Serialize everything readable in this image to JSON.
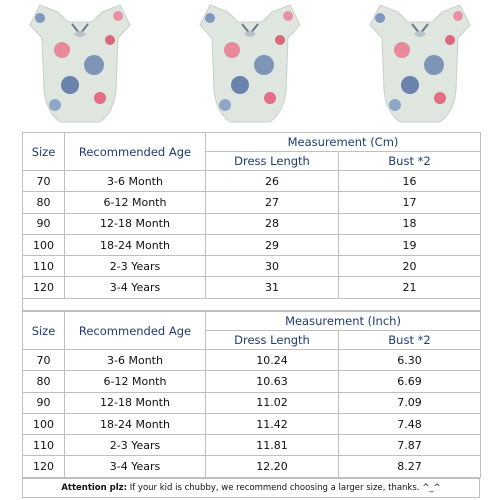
{
  "tables": [
    {
      "headers": {
        "size": "Size",
        "age": "Recommended Age",
        "measurement": "Measurement (Cm)",
        "dress": "Dress Length",
        "bust": "Bust *2"
      },
      "rows": [
        [
          "70",
          "3-6 Month",
          "26",
          "16"
        ],
        [
          "80",
          "6-12 Month",
          "27",
          "17"
        ],
        [
          "90",
          "12-18 Month",
          "28",
          "18"
        ],
        [
          "100",
          "18-24 Month",
          "29",
          "19"
        ],
        [
          "110",
          "2-3 Years",
          "30",
          "20"
        ],
        [
          "120",
          "3-4 Years",
          "31",
          "21"
        ]
      ]
    },
    {
      "headers": {
        "size": "Size",
        "age": "Recommended Age",
        "measurement": "Measurement (Inch)",
        "dress": "Dress Length",
        "bust": "Bust *2"
      },
      "rows": [
        [
          "70",
          "3-6 Month",
          "10.24",
          "6.30"
        ],
        [
          "80",
          "6-12 Month",
          "10.63",
          "6.69"
        ],
        [
          "90",
          "12-18 Month",
          "11.02",
          "7.09"
        ],
        [
          "100",
          "18-24 Month",
          "11.42",
          "7.48"
        ],
        [
          "110",
          "2-3 Years",
          "11.81",
          "7.87"
        ],
        [
          "120",
          "3-4 Years",
          "12.20",
          "8.27"
        ]
      ]
    }
  ],
  "footer": {
    "label": "Attention plz:",
    "text": "If your kid is chubby, we recommend choosing a larger size, thanks. ^_^"
  }
}
